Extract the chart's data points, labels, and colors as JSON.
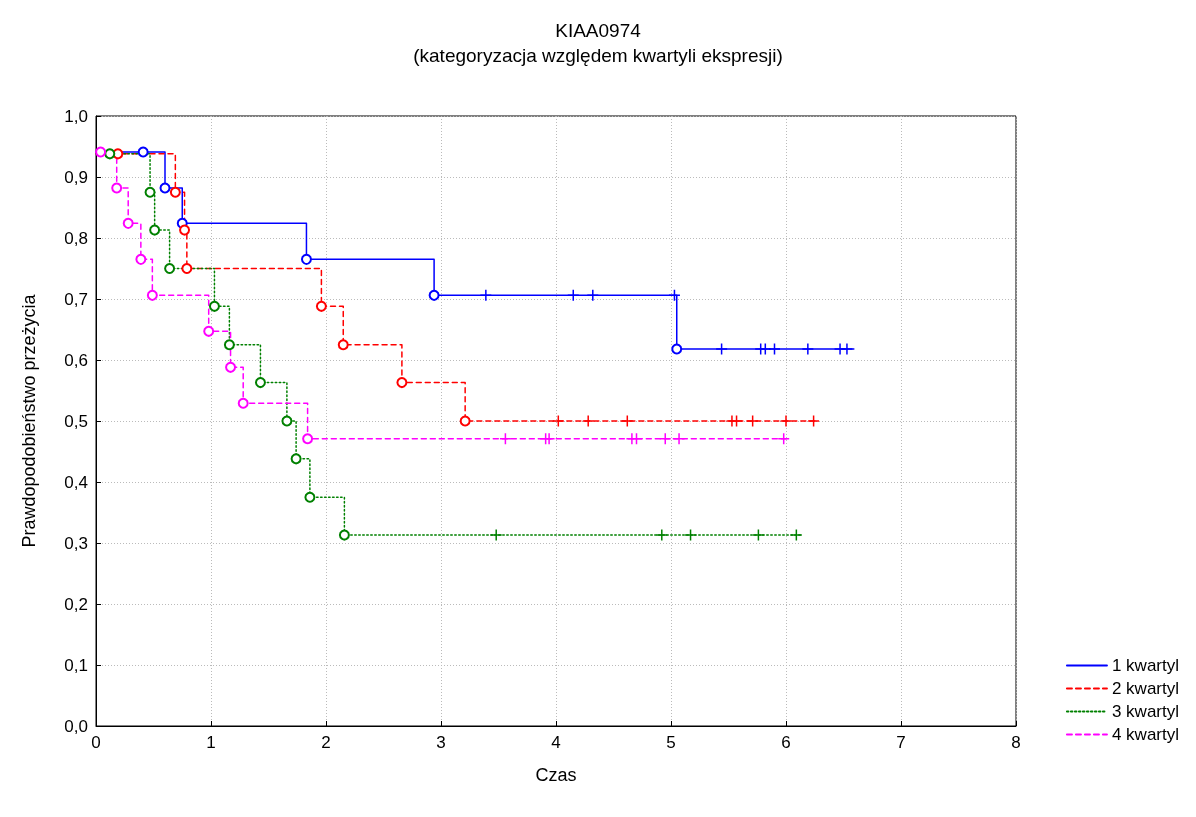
{
  "chart_data": {
    "type": "step",
    "title": "KIAA0974",
    "subtitle": "(kategoryzacja względem kwartyli ekspresji)",
    "xlabel": "Czas",
    "ylabel": "Prawdopodobieństwo przeżycia",
    "xlim": [
      0,
      8
    ],
    "xticks": [
      0,
      1,
      2,
      3,
      4,
      5,
      6,
      7,
      8
    ],
    "ylim": [
      0,
      1
    ],
    "yticks": [
      {
        "value": 0,
        "label": "0,0"
      },
      {
        "value": 0.1,
        "label": "0,1"
      },
      {
        "value": 0.2,
        "label": "0,2"
      },
      {
        "value": 0.3,
        "label": "0,3"
      },
      {
        "value": 0.4,
        "label": "0,4"
      },
      {
        "value": 0.5,
        "label": "0,5"
      },
      {
        "value": 0.6,
        "label": "0,6"
      },
      {
        "value": 0.7,
        "label": "0,7"
      },
      {
        "value": 0.8,
        "label": "0,8"
      },
      {
        "value": 0.9,
        "label": "0,9"
      },
      {
        "value": 1,
        "label": "1,0"
      }
    ],
    "grid": true,
    "legend": "bottom right",
    "series": [
      {
        "name": "1 kwartyl",
        "color": "#0000ff",
        "line_style": "solid",
        "marker": "none",
        "x": [
          0,
          0.6,
          0.75,
          1.83,
          2.94,
          5.05,
          6.59
        ],
        "values": [
          0.941,
          0.882,
          0.824,
          0.765,
          0.706,
          0.618,
          0.618
        ]
      },
      {
        "name": "2 kwartyl",
        "color": "#ff0000",
        "line_style": "dashed",
        "marker": "none",
        "x": [
          0,
          0.69,
          0.77,
          0.79,
          1.96,
          2.15,
          2.66,
          3.21,
          6.26
        ],
        "values": [
          0.938,
          0.875,
          0.813,
          0.75,
          0.688,
          0.625,
          0.563,
          0.5,
          0.5
        ]
      },
      {
        "name": "3 kwartyl",
        "color": "#008000",
        "line_style": "dotted",
        "marker": "none",
        "x": [
          0,
          0.47,
          0.51,
          0.64,
          1.03,
          1.16,
          1.43,
          1.66,
          1.74,
          1.86,
          2.16,
          6.14
        ],
        "values": [
          0.938,
          0.875,
          0.813,
          0.75,
          0.688,
          0.625,
          0.563,
          0.5,
          0.438,
          0.375,
          0.313,
          0.313
        ]
      },
      {
        "name": "4 kwartyl",
        "color": "#ff00ff",
        "line_style": "dashed",
        "marker": "none",
        "x": [
          0,
          0.18,
          0.28,
          0.39,
          0.49,
          0.98,
          1.17,
          1.28,
          1.84,
          6.01
        ],
        "values": [
          0.941,
          0.882,
          0.824,
          0.765,
          0.706,
          0.647,
          0.588,
          0.529,
          0.471,
          0.471
        ]
      },
      {
        "type": "scatter",
        "color": "#0000ff",
        "marker": "circle",
        "x": [
          0.41,
          0.6,
          0.75,
          1.83,
          2.94,
          5.05
        ],
        "values": [
          0.941,
          0.882,
          0.824,
          0.765,
          0.706,
          0.618
        ]
      },
      {
        "type": "scatter",
        "color": "#0000ff",
        "marker": "cross",
        "x": [
          3.39,
          4.15,
          4.32,
          5.03,
          5.44,
          5.78,
          5.82,
          5.9,
          6.19,
          6.47,
          6.53
        ],
        "values": [
          0.706,
          0.706,
          0.706,
          0.706,
          0.618,
          0.618,
          0.618,
          0.618,
          0.618,
          0.618,
          0.618
        ]
      },
      {
        "type": "scatter",
        "color": "#ff0000",
        "marker": "circle",
        "x": [
          0.19,
          0.69,
          0.77,
          0.79,
          1.96,
          2.15,
          2.66,
          3.21
        ],
        "values": [
          0.938,
          0.875,
          0.813,
          0.75,
          0.688,
          0.625,
          0.563,
          0.5
        ]
      },
      {
        "type": "scatter",
        "color": "#ff0000",
        "marker": "cross",
        "x": [
          4.02,
          4.28,
          4.62,
          5.53,
          5.57,
          5.71,
          6.0,
          6.24
        ],
        "values": [
          0.5,
          0.5,
          0.5,
          0.5,
          0.5,
          0.5,
          0.5,
          0.5
        ]
      },
      {
        "type": "scatter",
        "color": "#008000",
        "marker": "circle",
        "x": [
          0.12,
          0.47,
          0.51,
          0.64,
          1.03,
          1.16,
          1.43,
          1.66,
          1.74,
          1.86,
          2.16
        ],
        "values": [
          0.938,
          0.875,
          0.813,
          0.75,
          0.688,
          0.625,
          0.563,
          0.5,
          0.438,
          0.375,
          0.313
        ]
      },
      {
        "type": "scatter",
        "color": "#008000",
        "marker": "cross",
        "x": [
          3.48,
          4.92,
          5.17,
          5.76,
          6.09
        ],
        "values": [
          0.313,
          0.313,
          0.313,
          0.313,
          0.313
        ]
      },
      {
        "type": "scatter",
        "color": "#ff00ff",
        "marker": "circle",
        "x": [
          0.04,
          0.18,
          0.28,
          0.39,
          0.49,
          0.98,
          1.17,
          1.28,
          1.84
        ],
        "values": [
          0.941,
          0.882,
          0.824,
          0.765,
          0.706,
          0.647,
          0.588,
          0.529,
          0.471
        ]
      },
      {
        "type": "scatter",
        "color": "#ff00ff",
        "marker": "cross",
        "x": [
          3.56,
          3.91,
          3.94,
          4.66,
          4.7,
          4.95,
          5.07,
          5.98
        ],
        "values": [
          0.471,
          0.471,
          0.471,
          0.471,
          0.471,
          0.471,
          0.471,
          0.471
        ]
      }
    ]
  }
}
